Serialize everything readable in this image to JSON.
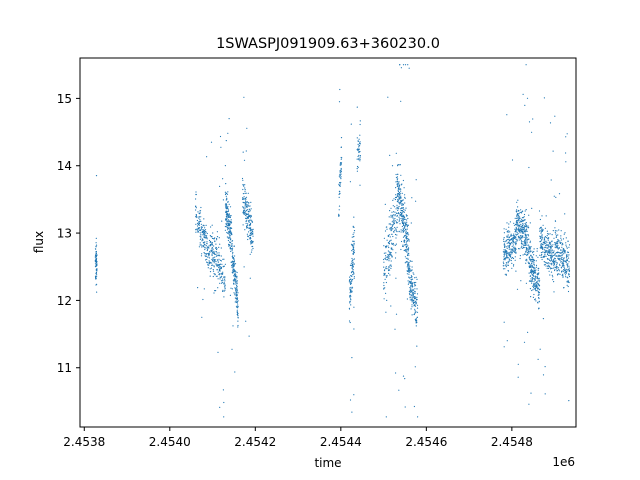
{
  "chart_data": {
    "type": "scatter",
    "title": "1SWASPJ091909.63+360230.0",
    "xlabel": "time",
    "ylabel": "flux",
    "x_offset_label": "1e6",
    "xlim": [
      2453790,
      2454950
    ],
    "ylim": [
      10.12,
      15.6
    ],
    "x_ticks": [
      2453800,
      2454000,
      2454200,
      2454400,
      2454600,
      2454800
    ],
    "x_tick_labels": [
      "2.4538",
      "2.4540",
      "2.4542",
      "2.4544",
      "2.4546",
      "2.4548"
    ],
    "y_ticks": [
      11,
      12,
      13,
      14,
      15
    ],
    "y_tick_labels": [
      "11",
      "12",
      "13",
      "14",
      "15"
    ],
    "grid": false,
    "legend": "none",
    "marker_color": "#1f77b4",
    "series": [
      {
        "segments": [
          {
            "x": [
              2453826,
              2453830
            ],
            "center": [
              12.55,
              12.55
            ],
            "spread": 0.35,
            "outlier": 0.9,
            "n": 70
          },
          {
            "x": [
              2454060,
              2454095
            ],
            "center": [
              13.3,
              12.65
            ],
            "spread": 0.3,
            "outlier": 1.0,
            "n": 190
          },
          {
            "x": [
              2454095,
              2454130
            ],
            "center": [
              12.8,
              12.3
            ],
            "spread": 0.35,
            "outlier": 1.4,
            "n": 190
          },
          {
            "x": [
              2454130,
              2454145
            ],
            "center": [
              13.4,
              12.9
            ],
            "spread": 0.35,
            "outlier": 1.3,
            "n": 170
          },
          {
            "x": [
              2454145,
              2454160
            ],
            "center": [
              12.7,
              11.9
            ],
            "spread": 0.35,
            "outlier": 1.2,
            "n": 160
          },
          {
            "x": [
              2454170,
              2454195
            ],
            "center": [
              13.6,
              12.9
            ],
            "spread": 0.35,
            "outlier": 1.1,
            "n": 190
          },
          {
            "x": [
              2454395,
              2454402
            ],
            "center": [
              13.5,
              14.1
            ],
            "spread": 0.4,
            "outlier": 1.0,
            "n": 50
          },
          {
            "x": [
              2454420,
              2454432
            ],
            "center": [
              12.1,
              12.8
            ],
            "spread": 0.45,
            "outlier": 1.5,
            "n": 120
          },
          {
            "x": [
              2454438,
              2454446
            ],
            "center": [
              14.2,
              14.3
            ],
            "spread": 0.25,
            "outlier": 0.5,
            "n": 40
          },
          {
            "x": [
              2454500,
              2454532
            ],
            "center": [
              12.4,
              13.3
            ],
            "spread": 0.5,
            "outlier": 1.5,
            "n": 200
          },
          {
            "x": [
              2454532,
              2454560
            ],
            "center": [
              13.7,
              12.6
            ],
            "spread": 0.45,
            "outlier": 2.2,
            "n": 300
          },
          {
            "x": [
              2454560,
              2454580
            ],
            "center": [
              12.3,
              11.8
            ],
            "spread": 0.4,
            "outlier": 1.3,
            "n": 160
          },
          {
            "x": [
              2454780,
              2454810
            ],
            "center": [
              12.7,
              12.9
            ],
            "spread": 0.3,
            "outlier": 1.6,
            "n": 220
          },
          {
            "x": [
              2454810,
              2454840
            ],
            "center": [
              13.2,
              12.8
            ],
            "spread": 0.35,
            "outlier": 1.8,
            "n": 260
          },
          {
            "x": [
              2454840,
              2454865
            ],
            "center": [
              12.6,
              12.2
            ],
            "spread": 0.35,
            "outlier": 1.5,
            "n": 220
          },
          {
            "x": [
              2454865,
              2454900
            ],
            "center": [
              12.9,
              12.6
            ],
            "spread": 0.3,
            "outlier": 1.4,
            "n": 240
          },
          {
            "x": [
              2454900,
              2454935
            ],
            "center": [
              12.8,
              12.5
            ],
            "spread": 0.35,
            "outlier": 1.3,
            "n": 240
          }
        ]
      }
    ]
  }
}
